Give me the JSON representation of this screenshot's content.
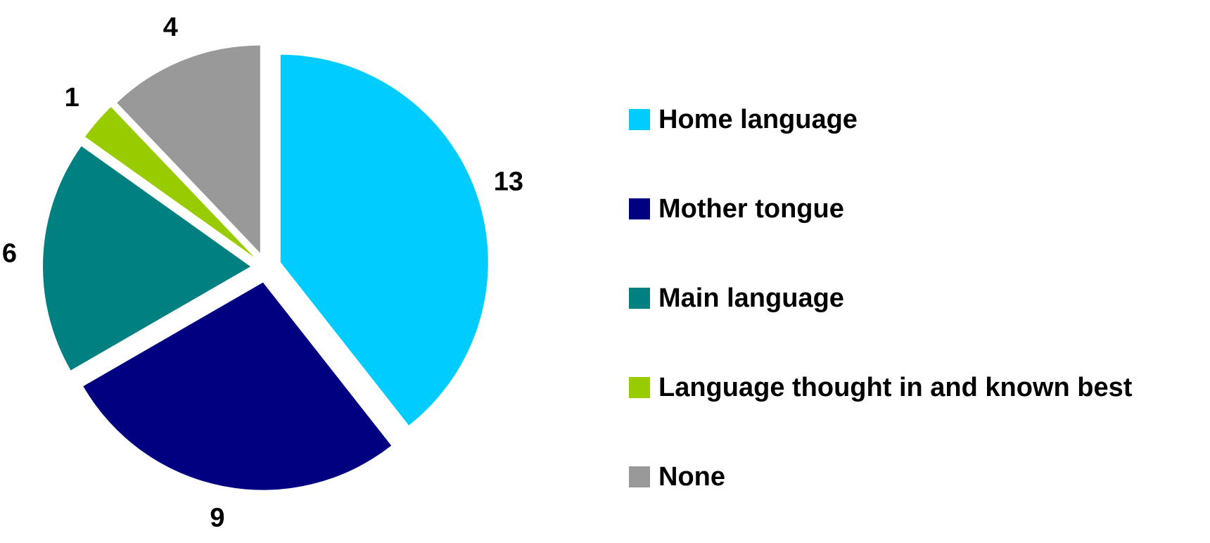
{
  "chart_data": {
    "type": "pie",
    "categories": [
      "Home language",
      "Mother tongue",
      "Main language",
      "Language thought in and known best",
      "None"
    ],
    "values": [
      13,
      9,
      6,
      1,
      4
    ],
    "colors": [
      "#00ccff",
      "#000080",
      "#008080",
      "#99cc00",
      "#999999"
    ],
    "legend": "right"
  }
}
